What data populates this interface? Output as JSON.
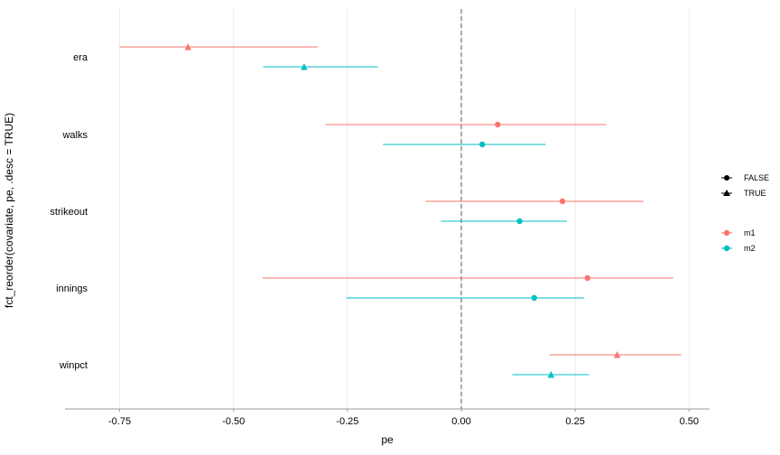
{
  "chart_data": {
    "type": "scatter",
    "subtype": "coefficient-plot-with-error-bars",
    "xlabel": "pe",
    "ylabel": "fct_reorder(covariate, pe, .desc = TRUE)",
    "xlim": [
      -0.87,
      0.545
    ],
    "x_ticks": [
      -0.75,
      -0.5,
      -0.25,
      0.0,
      0.25,
      0.5
    ],
    "x_tick_labels": [
      "-0.75",
      "-0.50",
      "-0.25",
      "0.00",
      "0.25",
      "0.50"
    ],
    "categories": [
      "era",
      "walks",
      "strikeout",
      "innings",
      "winpct"
    ],
    "reference_line": {
      "x": 0,
      "style": "dashed"
    },
    "grid": {
      "vertical_major": true,
      "horizontal": false
    },
    "legend_position": "right",
    "shape_legend": [
      {
        "label": "FALSE",
        "shape": "circle"
      },
      {
        "label": "TRUE",
        "shape": "triangle"
      }
    ],
    "color_legend": [
      {
        "label": "m1",
        "color": "#F8766D"
      },
      {
        "label": "m2",
        "color": "#00BFC4"
      }
    ],
    "series": [
      {
        "name": "m1",
        "color": "#F8766D",
        "points": [
          {
            "category": "era",
            "pe": -0.6,
            "lo": -0.75,
            "hi": -0.315,
            "significant": "TRUE"
          },
          {
            "category": "walks",
            "pe": 0.08,
            "lo": -0.298,
            "hi": 0.318,
            "significant": "FALSE"
          },
          {
            "category": "strikeout",
            "pe": 0.222,
            "lo": -0.078,
            "hi": 0.4,
            "significant": "FALSE"
          },
          {
            "category": "innings",
            "pe": 0.277,
            "lo": -0.437,
            "hi": 0.465,
            "significant": "FALSE"
          },
          {
            "category": "winpct",
            "pe": 0.342,
            "lo": 0.193,
            "hi": 0.483,
            "significant": "TRUE"
          }
        ]
      },
      {
        "name": "m2",
        "color": "#00BFC4",
        "points": [
          {
            "category": "era",
            "pe": -0.345,
            "lo": -0.435,
            "hi": -0.183,
            "significant": "TRUE"
          },
          {
            "category": "walks",
            "pe": 0.046,
            "lo": -0.172,
            "hi": 0.185,
            "significant": "FALSE"
          },
          {
            "category": "strikeout",
            "pe": 0.128,
            "lo": -0.045,
            "hi": 0.232,
            "significant": "FALSE"
          },
          {
            "category": "innings",
            "pe": 0.16,
            "lo": -0.253,
            "hi": 0.27,
            "significant": "FALSE"
          },
          {
            "category": "winpct",
            "pe": 0.197,
            "lo": 0.112,
            "hi": 0.28,
            "significant": "TRUE"
          }
        ]
      }
    ]
  }
}
